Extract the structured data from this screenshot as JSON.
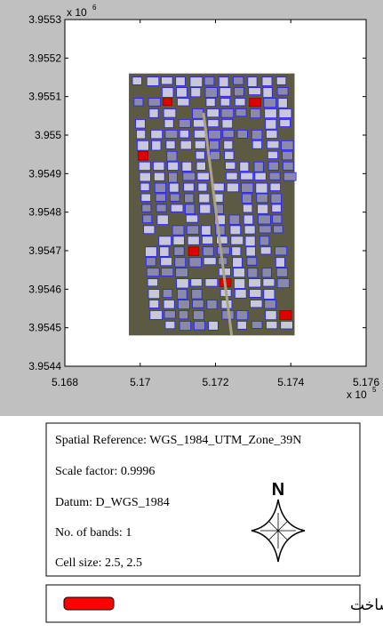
{
  "chart_data": {
    "type": "image",
    "xlim": [
      5.168,
      5.176
    ],
    "xticks": [
      5.168,
      5.17,
      5.172,
      5.174,
      5.176
    ],
    "ylim": [
      3.9544,
      3.9553
    ],
    "yticks": [
      3.9544,
      3.9545,
      3.9546,
      3.9547,
      3.9548,
      3.9549,
      3.955,
      3.9551,
      3.9552,
      3.9553
    ],
    "x_multiplier": {
      "base": "x 10",
      "exponent": "5"
    },
    "y_multiplier": {
      "base": "x 10",
      "exponent": "6"
    },
    "image_extent": {
      "x": [
        5.1697,
        5.1741
      ],
      "y": [
        3.95448,
        3.95516
      ]
    }
  },
  "info": {
    "lines": [
      "Spatial Reference: WGS_1984_UTM_Zone_39N",
      "Scale factor: 0.9996",
      "Datum: D_WGS_1984",
      "No. of bands: 1",
      "Cell size: 2.5, 2.5"
    ],
    "north": "N"
  },
  "legend": {
    "label": "ساختمان‌های در حال ساخت",
    "color": "#ff0000"
  }
}
